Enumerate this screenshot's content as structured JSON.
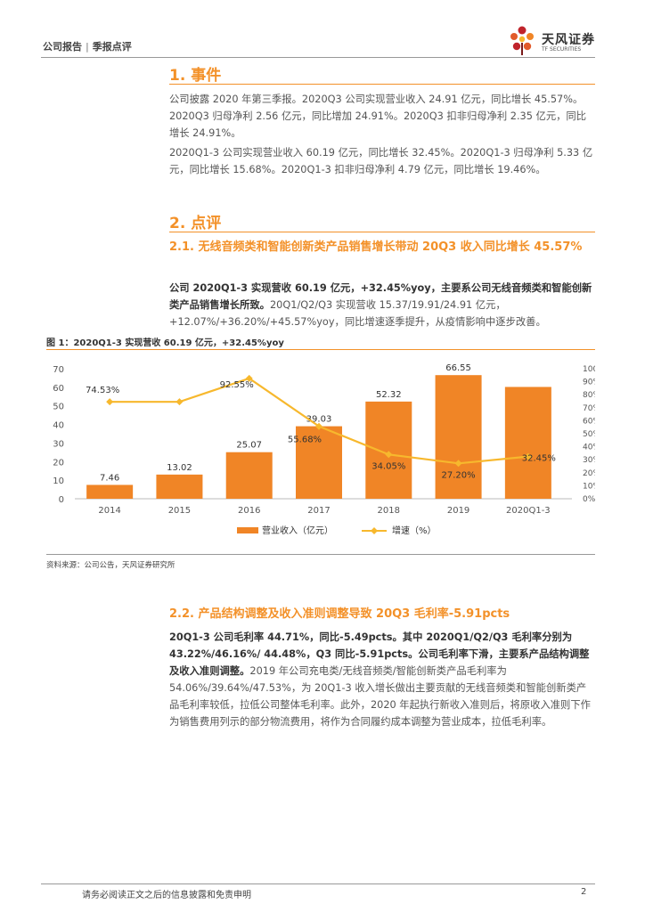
{
  "header": {
    "report_type": "公司报告",
    "separator": "|",
    "report_subtype": "季报点评",
    "logo_text_cn": "天风证券",
    "logo_text_en": "TF SECURITIES"
  },
  "section1": {
    "heading": "1. 事件",
    "para1": "公司披露 2020 年第三季报。2020Q3 公司实现营业收入 24.91 亿元，同比增长 45.57%。2020Q3 归母净利 2.56 亿元，同比增加 24.91%。2020Q3 扣非归母净利 2.35 亿元，同比增长 24.91%。",
    "para2": "2020Q1-3 公司实现营业收入 60.19 亿元，同比增长 32.45%。2020Q1-3 归母净利 5.33 亿元，同比增长 15.68%。2020Q1-3 扣非归母净利 4.79 亿元，同比增长 19.46%。"
  },
  "section2": {
    "heading": "2. 点评",
    "sub1": {
      "heading": "2.1. 无线音频类和智能创新类产品销售增长带动 20Q3 收入同比增长 45.57%",
      "bold": "公司 2020Q1-3 实现营收 60.19 亿元，+32.45%yoy，主要系公司无线音频类和智能创新类产品销售增长所致。",
      "text": "20Q1/Q2/Q3 实现营收 15.37/19.91/24.91 亿元，+12.07%/+36.20%/+45.57%yoy，同比增速逐季提升，从疫情影响中逐步改善。"
    },
    "figure": {
      "title": "图 1：2020Q1-3 实现营收 60.19 亿元，+32.45%yoy",
      "source": "资料来源：公司公告，天风证券研究所"
    },
    "sub2": {
      "heading": "2.2. 产品结构调整及收入准则调整导致 20Q3 毛利率-5.91pcts",
      "bold": "20Q1-3 公司毛利率 44.71%，同比-5.49pcts。其中 2020Q1/Q2/Q3 毛利率分别为 43.22%/46.16%/ 44.48%，Q3 同比-5.91pcts。公司毛利率下滑，主要系产品结构调整及收入准则调整。",
      "text": "2019 年公司充电类/无线音频类/智能创新类产品毛利率为 54.06%/39.64%/47.53%，为 20Q1-3 收入增长做出主要贡献的无线音频类和智能创新类产品毛利率较低，拉低公司整体毛利率。此外，2020 年起执行新收入准则后，将原收入准则下作为销售费用列示的部分物流费用，将作为合同履约成本调整为营业成本，拉低毛利率。"
    }
  },
  "chart_data": {
    "type": "bar",
    "categories": [
      "2014",
      "2015",
      "2016",
      "2017",
      "2018",
      "2019",
      "2020Q1-3"
    ],
    "series": [
      {
        "name": "营业收入（亿元）",
        "type": "bar",
        "axis": "left",
        "values": [
          7.46,
          13.02,
          25.07,
          39.03,
          52.32,
          66.55,
          60.19
        ],
        "labels": [
          "7.46",
          "13.02",
          "25.07",
          "39.03",
          "52.32",
          "66.55",
          ""
        ]
      },
      {
        "name": "增速（%）",
        "type": "line",
        "axis": "right",
        "values": [
          74.53,
          74.53,
          92.55,
          55.68,
          34.05,
          27.2,
          32.45
        ],
        "labels": [
          "74.53%",
          "",
          "92.55%",
          "55.68%",
          "34.05%",
          "27.20%",
          "32.45%"
        ]
      }
    ],
    "y_left": {
      "min": 0,
      "max": 70,
      "ticks": [
        "0",
        "10",
        "20",
        "30",
        "40",
        "50",
        "60",
        "70"
      ]
    },
    "y_right": {
      "min": 0,
      "max": 100,
      "ticks": [
        "0%",
        "10%",
        "20%",
        "30%",
        "40%",
        "50%",
        "60%",
        "70%",
        "80%",
        "90%",
        "100%"
      ]
    },
    "legend": [
      "营业收入（亿元）",
      "增速（%）"
    ],
    "colors": {
      "bar": "#f08526",
      "line": "#f7b82d"
    }
  },
  "footer": {
    "disclaimer": "请务必阅读正文之后的信息披露和免责申明",
    "page": "2"
  }
}
